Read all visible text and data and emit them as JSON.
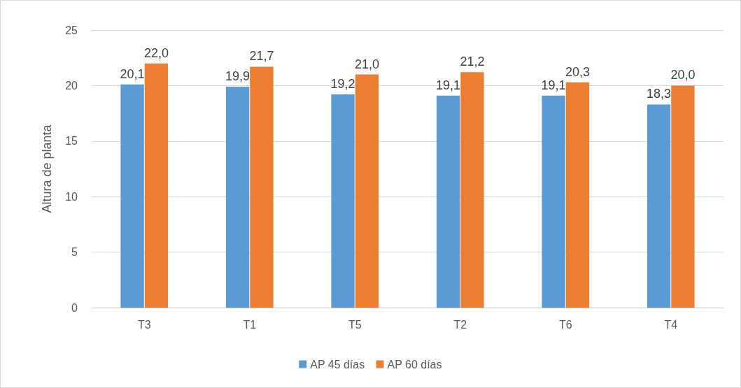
{
  "chart_data": {
    "type": "bar",
    "ylabel": "Altura de planta",
    "categories": [
      "T3",
      "T1",
      "T5",
      "T2",
      "T6",
      "T4"
    ],
    "series": [
      {
        "name": "AP 45 días",
        "color": "#5b9bd5",
        "values": [
          20.1,
          19.9,
          19.2,
          19.1,
          19.1,
          18.3
        ],
        "value_labels": [
          "20,1",
          "19,9",
          "19,2",
          "19,1",
          "19,1",
          "18,3"
        ]
      },
      {
        "name": "AP 60 días",
        "color": "#ed7d31",
        "values": [
          22.0,
          21.7,
          21.0,
          21.2,
          20.3,
          20.0
        ],
        "value_labels": [
          "22,0",
          "21,7",
          "21,0",
          "21,2",
          "20,3",
          "20,0"
        ]
      }
    ],
    "ylim": [
      0,
      25
    ],
    "yticks": [
      0,
      5,
      10,
      15,
      20,
      25
    ],
    "grid": "y",
    "legend": "bottom"
  }
}
